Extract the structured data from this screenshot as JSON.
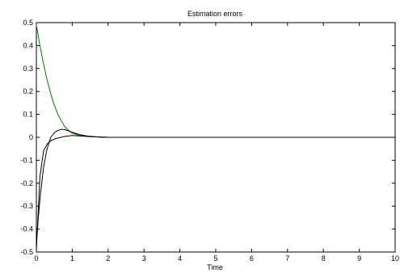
{
  "chart_data": {
    "type": "line",
    "title": "Estimation errors",
    "xlabel": "Time",
    "ylabel": "",
    "xlim": [
      0,
      10
    ],
    "ylim": [
      -0.5,
      0.5
    ],
    "xticks": [
      "0",
      "1",
      "2",
      "3",
      "4",
      "5",
      "6",
      "7",
      "8",
      "9",
      "10"
    ],
    "yticks": [
      "0.5",
      "0.4",
      "0.3",
      "0.2",
      "0.1",
      "0",
      "-0.1",
      "-0.2",
      "-0.3",
      "-0.4",
      "-0.5"
    ],
    "grid": false,
    "legend": "none",
    "series": [
      {
        "color": "#008000",
        "x": [
          0,
          0.1,
          0.2,
          0.3,
          0.4,
          0.5,
          0.6,
          0.7,
          0.8,
          0.9,
          1.0,
          1.2,
          1.4,
          1.6,
          1.8,
          2.0,
          2.5,
          3,
          4,
          5,
          6,
          7,
          8,
          9,
          10
        ],
        "y": [
          0.49,
          0.4,
          0.32,
          0.25,
          0.19,
          0.14,
          0.1,
          0.07,
          0.045,
          0.03,
          0.018,
          0.008,
          0.004,
          0.002,
          0.001,
          0.0,
          0,
          0,
          0,
          0,
          0,
          0,
          0,
          0,
          0
        ]
      },
      {
        "color": "#000000",
        "x": [
          0,
          0.05,
          0.1,
          0.2,
          0.3,
          0.4,
          0.5,
          0.6,
          0.7,
          0.8,
          0.9,
          1.0,
          1.2,
          1.4,
          1.6,
          1.8,
          2.0,
          2.5,
          3,
          4,
          5,
          6,
          7,
          8,
          9,
          10
        ],
        "y": [
          -0.47,
          -0.36,
          -0.27,
          -0.13,
          -0.05,
          0.0,
          0.02,
          0.03,
          0.035,
          0.033,
          0.028,
          0.022,
          0.012,
          0.006,
          0.003,
          0.001,
          0.0,
          0,
          0,
          0,
          0,
          0,
          0,
          0,
          0,
          0
        ]
      },
      {
        "color": "#000000",
        "x": [
          0,
          0.1,
          0.2,
          0.3,
          0.4,
          0.5,
          0.6,
          0.8,
          1.0,
          1.2,
          1.4,
          1.6,
          1.8,
          2.0,
          2.5,
          3,
          4,
          5,
          6,
          7,
          8,
          9,
          10
        ],
        "y": [
          -0.49,
          -0.17,
          -0.06,
          -0.03,
          -0.015,
          -0.008,
          -0.003,
          0.004,
          0.008,
          0.006,
          0.004,
          0.002,
          0.001,
          0.0,
          0,
          0,
          0,
          0,
          0,
          0,
          0,
          0,
          0
        ]
      }
    ]
  }
}
